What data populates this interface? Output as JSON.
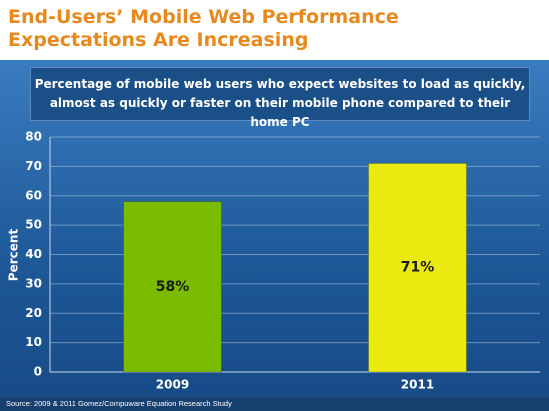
{
  "chart_data": {
    "type": "bar",
    "title": "End-Users’ Mobile Web Performance Expectations Are Increasing",
    "subtitle": "Percentage of mobile web users who expect websites to load as quickly, almost as quickly or faster on their mobile phone compared to their home PC",
    "ylabel": "Percent",
    "categories": [
      "2009",
      "2011"
    ],
    "values": [
      58,
      71
    ],
    "value_labels": [
      "58%",
      "71%"
    ],
    "colors": [
      "#7cbc00",
      "#eaea10"
    ],
    "ylim": [
      0,
      80
    ],
    "yticks": [
      0,
      10,
      20,
      30,
      40,
      50,
      60,
      70,
      80
    ],
    "grid": true,
    "source": "Source: 2009 & 2011 Gomez/Compuware Equation Research Study"
  }
}
